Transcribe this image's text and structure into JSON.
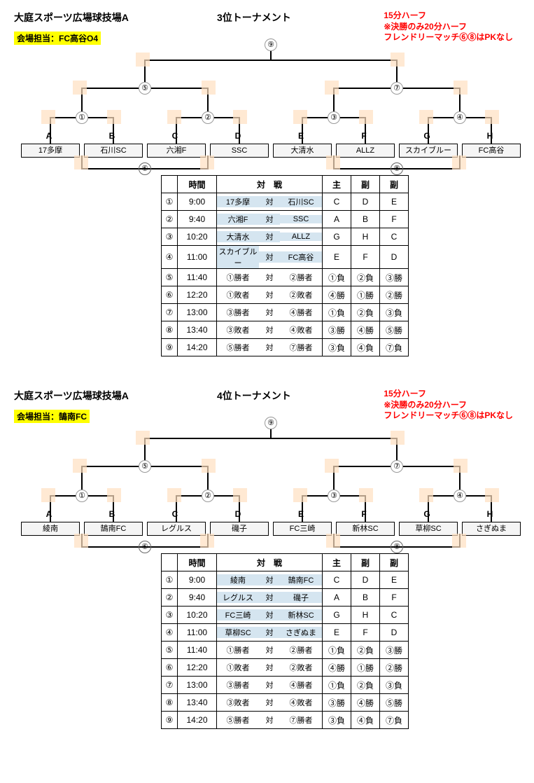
{
  "sections": [
    {
      "venue": "大庭スポーツ広場球技場A",
      "title": "3位トーナメント",
      "notes": "15分ハーフ\n※決勝のみ20分ハーフ\nフレンドリーマッチ⑥⑧はPKなし",
      "charge": "会場担当：FC高谷O4",
      "teams": [
        "17多摩",
        "石川SC",
        "六湘F",
        "SSC",
        "大清水",
        "ALLZ",
        "スカイブルー",
        "FC高谷"
      ],
      "letters": [
        "A",
        "B",
        "C",
        "D",
        "E",
        "F",
        "G",
        "H"
      ],
      "matchNums": [
        "①",
        "②",
        "③",
        "④",
        "⑤",
        "⑦"
      ],
      "finalNum": "⑨",
      "loserNums": [
        "⑥",
        "⑧"
      ],
      "table": {
        "headers": [
          "",
          "時間",
          "対　戦",
          "主",
          "副",
          "副"
        ],
        "rows": [
          {
            "n": "①",
            "t": "9:00",
            "a": "17多摩",
            "b": "石川SC",
            "hl": true,
            "r": [
              "C",
              "D",
              "E"
            ]
          },
          {
            "n": "②",
            "t": "9:40",
            "a": "六湘F",
            "b": "SSC",
            "hl": true,
            "r": [
              "A",
              "B",
              "F"
            ]
          },
          {
            "n": "③",
            "t": "10:20",
            "a": "大清水",
            "b": "ALLZ",
            "hl": true,
            "r": [
              "G",
              "H",
              "C"
            ]
          },
          {
            "n": "④",
            "t": "11:00",
            "a": "スカイブルー",
            "b": "FC高谷",
            "hl": true,
            "r": [
              "E",
              "F",
              "D"
            ]
          },
          {
            "n": "⑤",
            "t": "11:40",
            "a": "①勝者",
            "b": "②勝者",
            "r": [
              "①負",
              "②負",
              "③勝"
            ]
          },
          {
            "n": "⑥",
            "t": "12:20",
            "a": "①敗者",
            "b": "②敗者",
            "r": [
              "④勝",
              "①勝",
              "②勝"
            ]
          },
          {
            "n": "⑦",
            "t": "13:00",
            "a": "③勝者",
            "b": "④勝者",
            "r": [
              "①負",
              "②負",
              "③負"
            ]
          },
          {
            "n": "⑧",
            "t": "13:40",
            "a": "③敗者",
            "b": "④敗者",
            "r": [
              "③勝",
              "④勝",
              "⑤勝"
            ]
          },
          {
            "n": "⑨",
            "t": "14:20",
            "a": "⑤勝者",
            "b": "⑦勝者",
            "r": [
              "③負",
              "④負",
              "⑦負"
            ]
          }
        ]
      }
    },
    {
      "venue": "大庭スポーツ広場球技場A",
      "title": "4位トーナメント",
      "notes": "15分ハーフ\n※決勝のみ20分ハーフ\nフレンドリーマッチ⑥⑧はPKなし",
      "charge": "会場担当：鵠南FC",
      "teams": [
        "綾南",
        "鵠南FC",
        "レグルス",
        "磯子",
        "FC三崎",
        "新林SC",
        "草柳SC",
        "さぎぬま"
      ],
      "letters": [
        "A",
        "B",
        "C",
        "D",
        "E",
        "F",
        "G",
        "H"
      ],
      "matchNums": [
        "①",
        "②",
        "③",
        "④",
        "⑤",
        "⑦"
      ],
      "finalNum": "⑨",
      "loserNums": [
        "⑥",
        "⑧"
      ],
      "table": {
        "headers": [
          "",
          "時間",
          "対　戦",
          "主",
          "副",
          "副"
        ],
        "rows": [
          {
            "n": "①",
            "t": "9:00",
            "a": "綾南",
            "b": "鵠南FC",
            "hl": true,
            "r": [
              "C",
              "D",
              "E"
            ]
          },
          {
            "n": "②",
            "t": "9:40",
            "a": "レグルス",
            "b": "磯子",
            "hl": true,
            "r": [
              "A",
              "B",
              "F"
            ]
          },
          {
            "n": "③",
            "t": "10:20",
            "a": "FC三崎",
            "b": "新林SC",
            "hl": true,
            "r": [
              "G",
              "H",
              "C"
            ]
          },
          {
            "n": "④",
            "t": "11:00",
            "a": "草柳SC",
            "b": "さぎぬま",
            "hl": true,
            "r": [
              "E",
              "F",
              "D"
            ]
          },
          {
            "n": "⑤",
            "t": "11:40",
            "a": "①勝者",
            "b": "②勝者",
            "r": [
              "①負",
              "②負",
              "③勝"
            ]
          },
          {
            "n": "⑥",
            "t": "12:20",
            "a": "①敗者",
            "b": "②敗者",
            "r": [
              "④勝",
              "①勝",
              "②勝"
            ]
          },
          {
            "n": "⑦",
            "t": "13:00",
            "a": "③勝者",
            "b": "④勝者",
            "r": [
              "①負",
              "②負",
              "③負"
            ]
          },
          {
            "n": "⑧",
            "t": "13:40",
            "a": "③敗者",
            "b": "④敗者",
            "r": [
              "③勝",
              "④勝",
              "⑤勝"
            ]
          },
          {
            "n": "⑨",
            "t": "14:20",
            "a": "⑤勝者",
            "b": "⑦勝者",
            "r": [
              "③負",
              "④負",
              "⑦負"
            ]
          }
        ]
      }
    }
  ],
  "bracketLayout": {
    "teamXs": [
      0,
      90,
      180,
      270,
      360,
      450,
      540,
      630
    ],
    "teamW": 82,
    "r1Centers": [
      41,
      131,
      221,
      311,
      401,
      491,
      581,
      671
    ],
    "r2Centers": [
      86,
      266,
      446,
      626
    ],
    "r3Centers": [
      176,
      536
    ],
    "finalCenter": 356,
    "yTeam": 150,
    "yLetter": 132,
    "yR1": 112,
    "yR2": 70,
    "yR3": 30,
    "yFinal": 0,
    "colorPlaceholderBg": "#ffe0c0"
  }
}
